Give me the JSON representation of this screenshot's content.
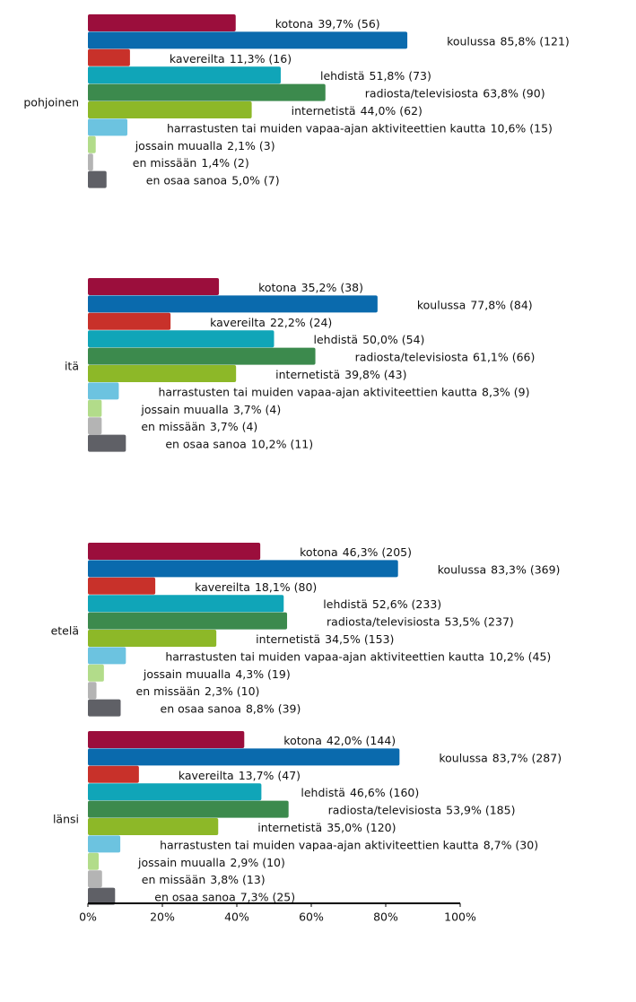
{
  "chart_data": {
    "type": "bar",
    "orientation": "horizontal",
    "categories": [
      "pohjoinen",
      "itä",
      "etelä",
      "länsi"
    ],
    "series": [
      {
        "name": "kotona",
        "color": "#9b0e3c",
        "values": [
          39.7,
          35.2,
          46.3,
          42.0
        ],
        "value_labels": [
          "39,7% (56)",
          "35,2% (38)",
          "46,3% (205)",
          "42,0% (144)"
        ]
      },
      {
        "name": "koulussa",
        "color": "#0a6aad",
        "values": [
          85.8,
          77.8,
          83.3,
          83.7
        ],
        "value_labels": [
          "85,8% (121)",
          "77,8% (84)",
          "83,3% (369)",
          "83,7% (287)"
        ]
      },
      {
        "name": "kavereilta",
        "color": "#c8312a",
        "values": [
          11.3,
          22.2,
          18.1,
          13.7
        ],
        "value_labels": [
          "11,3% (16)",
          "22,2% (24)",
          "18,1% (80)",
          "13,7% (47)"
        ]
      },
      {
        "name": "lehdistä",
        "color": "#10a5b8",
        "values": [
          51.8,
          50.0,
          52.6,
          46.6
        ],
        "value_labels": [
          "51,8% (73)",
          "50,0% (54)",
          "52,6% (233)",
          "46,6% (160)"
        ]
      },
      {
        "name": "radiosta/televisiosta",
        "color": "#3c8a4d",
        "values": [
          63.8,
          61.1,
          53.5,
          53.9
        ],
        "value_labels": [
          "63,8% (90)",
          "61,1% (66)",
          "53,5% (237)",
          "53,9% (185)"
        ]
      },
      {
        "name": "internetistä",
        "color": "#8db828",
        "values": [
          44.0,
          39.8,
          34.5,
          35.0
        ],
        "value_labels": [
          "44,0% (62)",
          "39,8% (43)",
          "34,5% (153)",
          "35,0% (120)"
        ]
      },
      {
        "name": "harrastusten tai muiden vapaa-ajan aktiviteettien kautta",
        "color": "#6cc3e0",
        "values": [
          10.6,
          8.3,
          10.2,
          8.7
        ],
        "value_labels": [
          "10,6% (15)",
          "8,3% (9)",
          "10,2% (45)",
          "8,7% (30)"
        ]
      },
      {
        "name": "jossain muualla",
        "color": "#b2dc8a",
        "values": [
          2.1,
          3.7,
          4.3,
          2.9
        ],
        "value_labels": [
          "2,1% (3)",
          "3,7% (4)",
          "4,3% (19)",
          "2,9% (10)"
        ]
      },
      {
        "name": "en missään",
        "color": "#b4b4b4",
        "values": [
          1.4,
          3.7,
          2.3,
          3.8
        ],
        "value_labels": [
          "1,4% (2)",
          "3,7% (4)",
          "2,3% (10)",
          "3,8% (13)"
        ]
      },
      {
        "name": "en osaa sanoa",
        "color": "#5f6066",
        "values": [
          5.0,
          10.2,
          8.8,
          7.3
        ],
        "value_labels": [
          "5,0% (7)",
          "10,2% (11)",
          "8,8% (39)",
          "7,3% (25)"
        ]
      }
    ],
    "xlim": [
      0,
      100
    ],
    "xticks": [
      {
        "value": 0,
        "label": "0%"
      },
      {
        "value": 20,
        "label": "20%"
      },
      {
        "value": 40,
        "label": "40%"
      },
      {
        "value": 60,
        "label": "60%"
      },
      {
        "value": 80,
        "label": "80%"
      },
      {
        "value": 100,
        "label": "100%"
      }
    ]
  }
}
